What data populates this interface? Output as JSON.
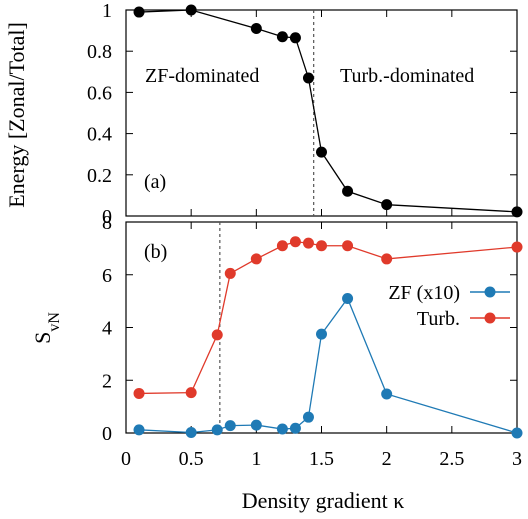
{
  "chart_data": [
    {
      "id": "a",
      "type": "line",
      "panel_label": "(a)",
      "ylabel": "Energy [Zonal/Total]",
      "xlim": [
        0,
        3
      ],
      "ylim": [
        0,
        1
      ],
      "yticks": [
        "0",
        "0.2",
        "0.4",
        "0.6",
        "0.8",
        "1"
      ],
      "ytick_values": [
        0,
        0.2,
        0.4,
        0.6,
        0.8,
        1
      ],
      "annotations": [
        "ZF-dominated",
        "Turb.-dominated"
      ],
      "vline_x": 1.44,
      "series": [
        {
          "color": "#000000",
          "x": [
            0.1,
            0.5,
            1.0,
            1.2,
            1.3,
            1.4,
            1.5,
            1.7,
            2.0,
            3.0
          ],
          "y": [
            0.99,
            1.0,
            0.91,
            0.87,
            0.865,
            0.67,
            0.31,
            0.12,
            0.055,
            0.02
          ]
        }
      ]
    },
    {
      "id": "b",
      "type": "line",
      "panel_label": "(b)",
      "ylabel": "S",
      "ylabel_sub": "vN",
      "xlabel": "Density gradient κ",
      "xlim": [
        0,
        3
      ],
      "ylim": [
        0,
        8
      ],
      "xticks": [
        "0",
        "0.5",
        "1",
        "1.5",
        "2",
        "2.5",
        "3"
      ],
      "xtick_values": [
        0,
        0.5,
        1,
        1.5,
        2,
        2.5,
        3
      ],
      "yticks": [
        "0",
        "2",
        "4",
        "6",
        "8"
      ],
      "ytick_values": [
        0,
        2,
        4,
        6,
        8
      ],
      "vline_x": 0.72,
      "legend_position": "top-right",
      "series": [
        {
          "name": "ZF (x10)",
          "color": "#1f7ab5",
          "x": [
            0.1,
            0.5,
            0.7,
            0.8,
            1.0,
            1.2,
            1.3,
            1.4,
            1.5,
            1.7,
            2.0,
            3.0
          ],
          "y": [
            0.12,
            0.02,
            0.12,
            0.28,
            0.3,
            0.15,
            0.18,
            0.6,
            3.75,
            5.1,
            1.48,
            0.0
          ]
        },
        {
          "name": "Turb.",
          "color": "#e03a2b",
          "x": [
            0.1,
            0.5,
            0.7,
            0.8,
            1.0,
            1.2,
            1.3,
            1.4,
            1.5,
            1.7,
            2.0,
            3.0
          ],
          "y": [
            1.5,
            1.53,
            3.72,
            6.05,
            6.6,
            7.1,
            7.25,
            7.2,
            7.1,
            7.1,
            6.6,
            7.05
          ]
        }
      ]
    }
  ]
}
